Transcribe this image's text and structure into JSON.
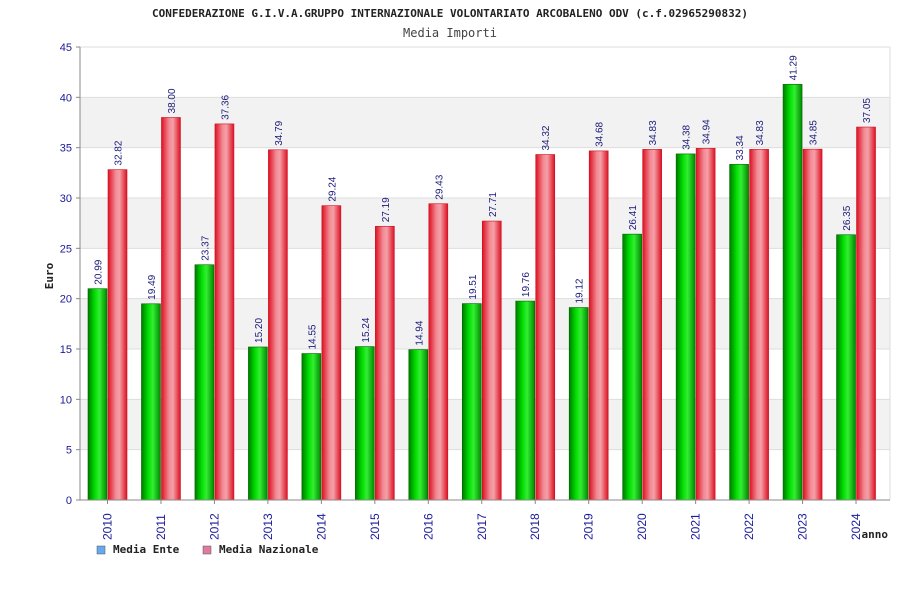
{
  "chart_data": {
    "type": "bar",
    "title": "CONFEDERAZIONE G.I.V.A.GRUPPO INTERNAZIONALE VOLONTARIATO ARCOBALENO ODV (c.f.02965290832)",
    "subtitle": "Media Importi",
    "xlabel": "anno",
    "ylabel": "Euro",
    "ylim": [
      0,
      45
    ],
    "yticks": [
      0,
      5,
      10,
      15,
      20,
      25,
      30,
      35,
      40,
      45
    ],
    "categories": [
      "2010",
      "2011",
      "2012",
      "2013",
      "2014",
      "2015",
      "2016",
      "2017",
      "2018",
      "2019",
      "2020",
      "2021",
      "2022",
      "2023",
      "2024"
    ],
    "series": [
      {
        "name": "Media Ente",
        "color": "#00bb00",
        "legend_color": "#66aaee",
        "values": [
          20.99,
          19.49,
          23.37,
          15.2,
          14.55,
          15.24,
          14.94,
          19.51,
          19.76,
          19.12,
          26.41,
          34.38,
          33.34,
          41.29,
          26.35
        ],
        "labels": [
          "20.99",
          "19.49",
          "23.37",
          "15.20",
          "14.55",
          "15.24",
          "14.94",
          "19.51",
          "19.76",
          "19.12",
          "26.41",
          "34.38",
          "33.34",
          "41.29",
          "26.35"
        ]
      },
      {
        "name": "Media Nazionale",
        "color": "#ee2233",
        "legend_color": "#e07aa0",
        "values": [
          32.82,
          38.0,
          37.36,
          34.79,
          29.24,
          27.19,
          29.43,
          27.71,
          34.32,
          34.68,
          34.83,
          34.94,
          34.83,
          34.85,
          37.05
        ],
        "labels": [
          "32.82",
          "38.00",
          "37.36",
          "34.79",
          "29.24",
          "27.19",
          "29.43",
          "27.71",
          "34.32",
          "34.68",
          "34.83",
          "34.94",
          "34.83",
          "34.85",
          "37.05"
        ]
      }
    ],
    "grid": true,
    "legend_position": "bottom-left"
  }
}
